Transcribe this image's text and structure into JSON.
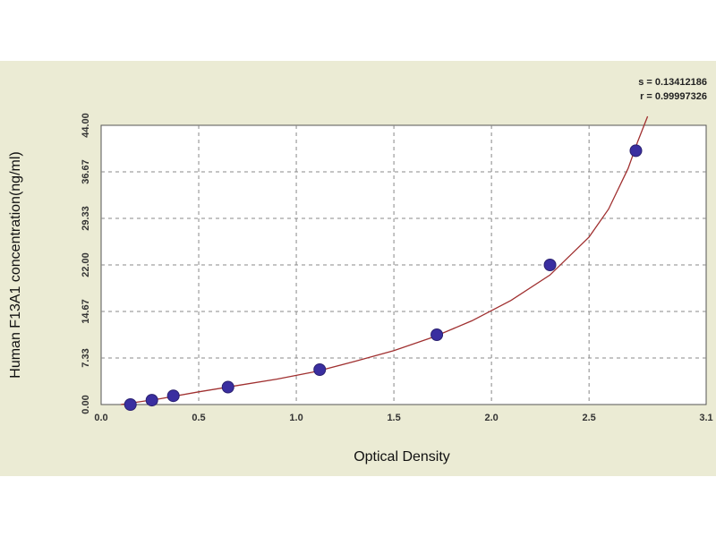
{
  "chart_data": {
    "type": "scatter",
    "title": "",
    "xlabel": "Optical Density",
    "ylabel": "Human F13A1 concentration(ng/ml)",
    "xlim": [
      0.0,
      3.1
    ],
    "ylim": [
      0.0,
      44.0
    ],
    "x_ticks": [
      "0.0",
      "0.5",
      "1.0",
      "1.5",
      "2.0",
      "2.5",
      "3.1"
    ],
    "x_tick_values": [
      0.0,
      0.5,
      1.0,
      1.5,
      2.0,
      2.5,
      3.1
    ],
    "y_ticks": [
      "0.00",
      "7.33",
      "14.67",
      "22.00",
      "29.33",
      "36.67",
      "44.00"
    ],
    "y_tick_values": [
      0.0,
      7.33,
      14.67,
      22.0,
      29.33,
      36.67,
      44.0
    ],
    "grid": true,
    "stats": {
      "s_text": "s = 0.13412186",
      "r_text": "r = 0.99997326"
    },
    "series": [
      {
        "type": "scatter",
        "x": [
          0.15,
          0.26,
          0.37,
          0.65,
          1.12,
          1.72,
          2.3,
          2.74
        ],
        "y": [
          0.0,
          0.69,
          1.38,
          2.75,
          5.5,
          11.0,
          22.0,
          40.0
        ],
        "color": "#3a2ea0"
      },
      {
        "type": "line",
        "curve": "fitted",
        "x": [
          0.1,
          0.3,
          0.5,
          0.7,
          0.9,
          1.1,
          1.3,
          1.5,
          1.7,
          1.9,
          2.1,
          2.3,
          2.5,
          2.6,
          2.7,
          2.75,
          2.8
        ],
        "y": [
          -0.4,
          0.9,
          2.0,
          3.0,
          4.0,
          5.2,
          6.8,
          8.5,
          10.6,
          13.2,
          16.4,
          20.4,
          26.4,
          30.8,
          37.2,
          41.5,
          46.0
        ],
        "color": "#a03030"
      }
    ]
  }
}
